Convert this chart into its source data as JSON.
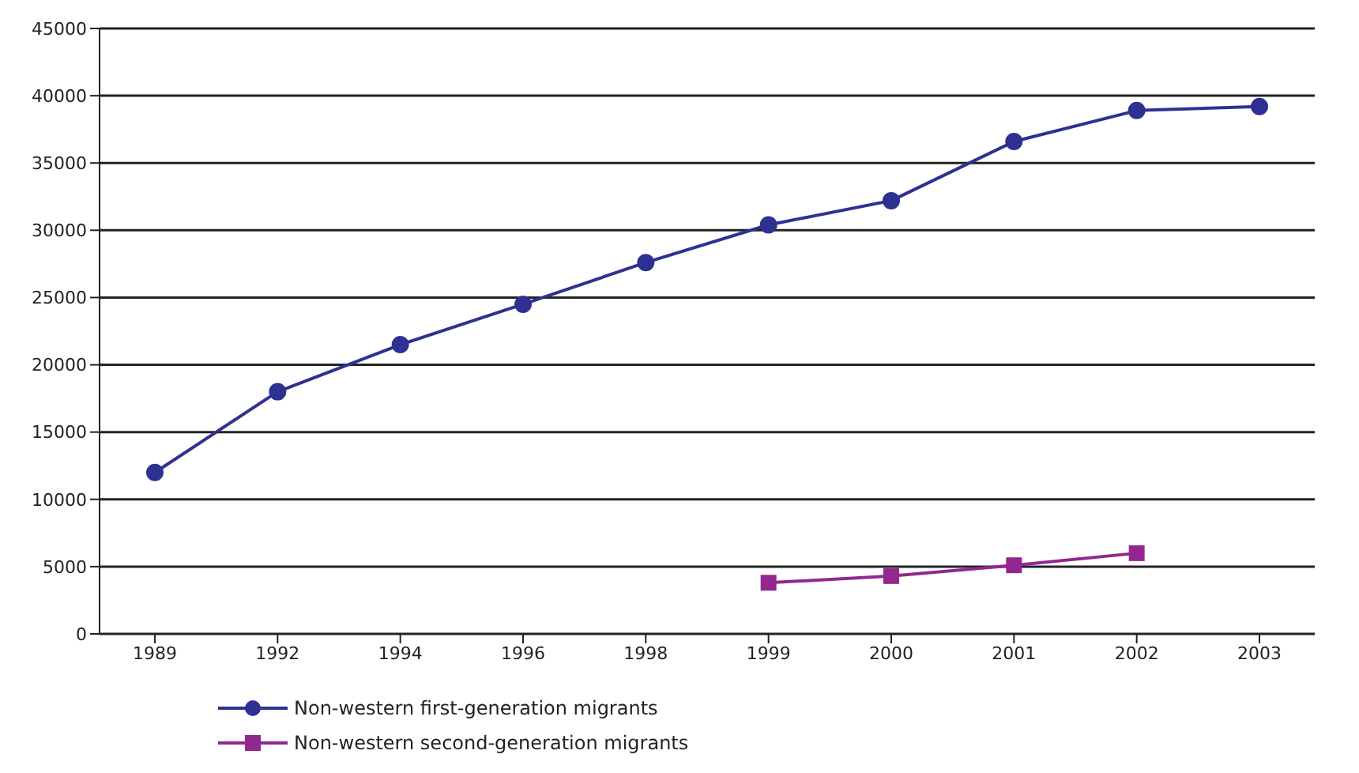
{
  "chart_data": {
    "type": "line",
    "categories": [
      "1989",
      "1992",
      "1994",
      "1996",
      "1998",
      "1999",
      "2000",
      "2001",
      "2002",
      "2003"
    ],
    "series": [
      {
        "name": "Non-western first-generation migrants",
        "color": "#2e3192",
        "marker": "circle",
        "values": [
          12000,
          18000,
          21500,
          24500,
          27600,
          30400,
          32200,
          36600,
          38900,
          39200
        ]
      },
      {
        "name": "Non-western second-generation migrants",
        "color": "#92278f",
        "marker": "square",
        "values": [
          null,
          null,
          null,
          null,
          null,
          3800,
          4300,
          5100,
          6000,
          null
        ]
      }
    ],
    "ylim": [
      0,
      45000
    ],
    "yticks": [
      0,
      5000,
      10000,
      15000,
      20000,
      25000,
      30000,
      35000,
      40000,
      45000
    ],
    "grid": "y",
    "legend": "bottom left"
  }
}
